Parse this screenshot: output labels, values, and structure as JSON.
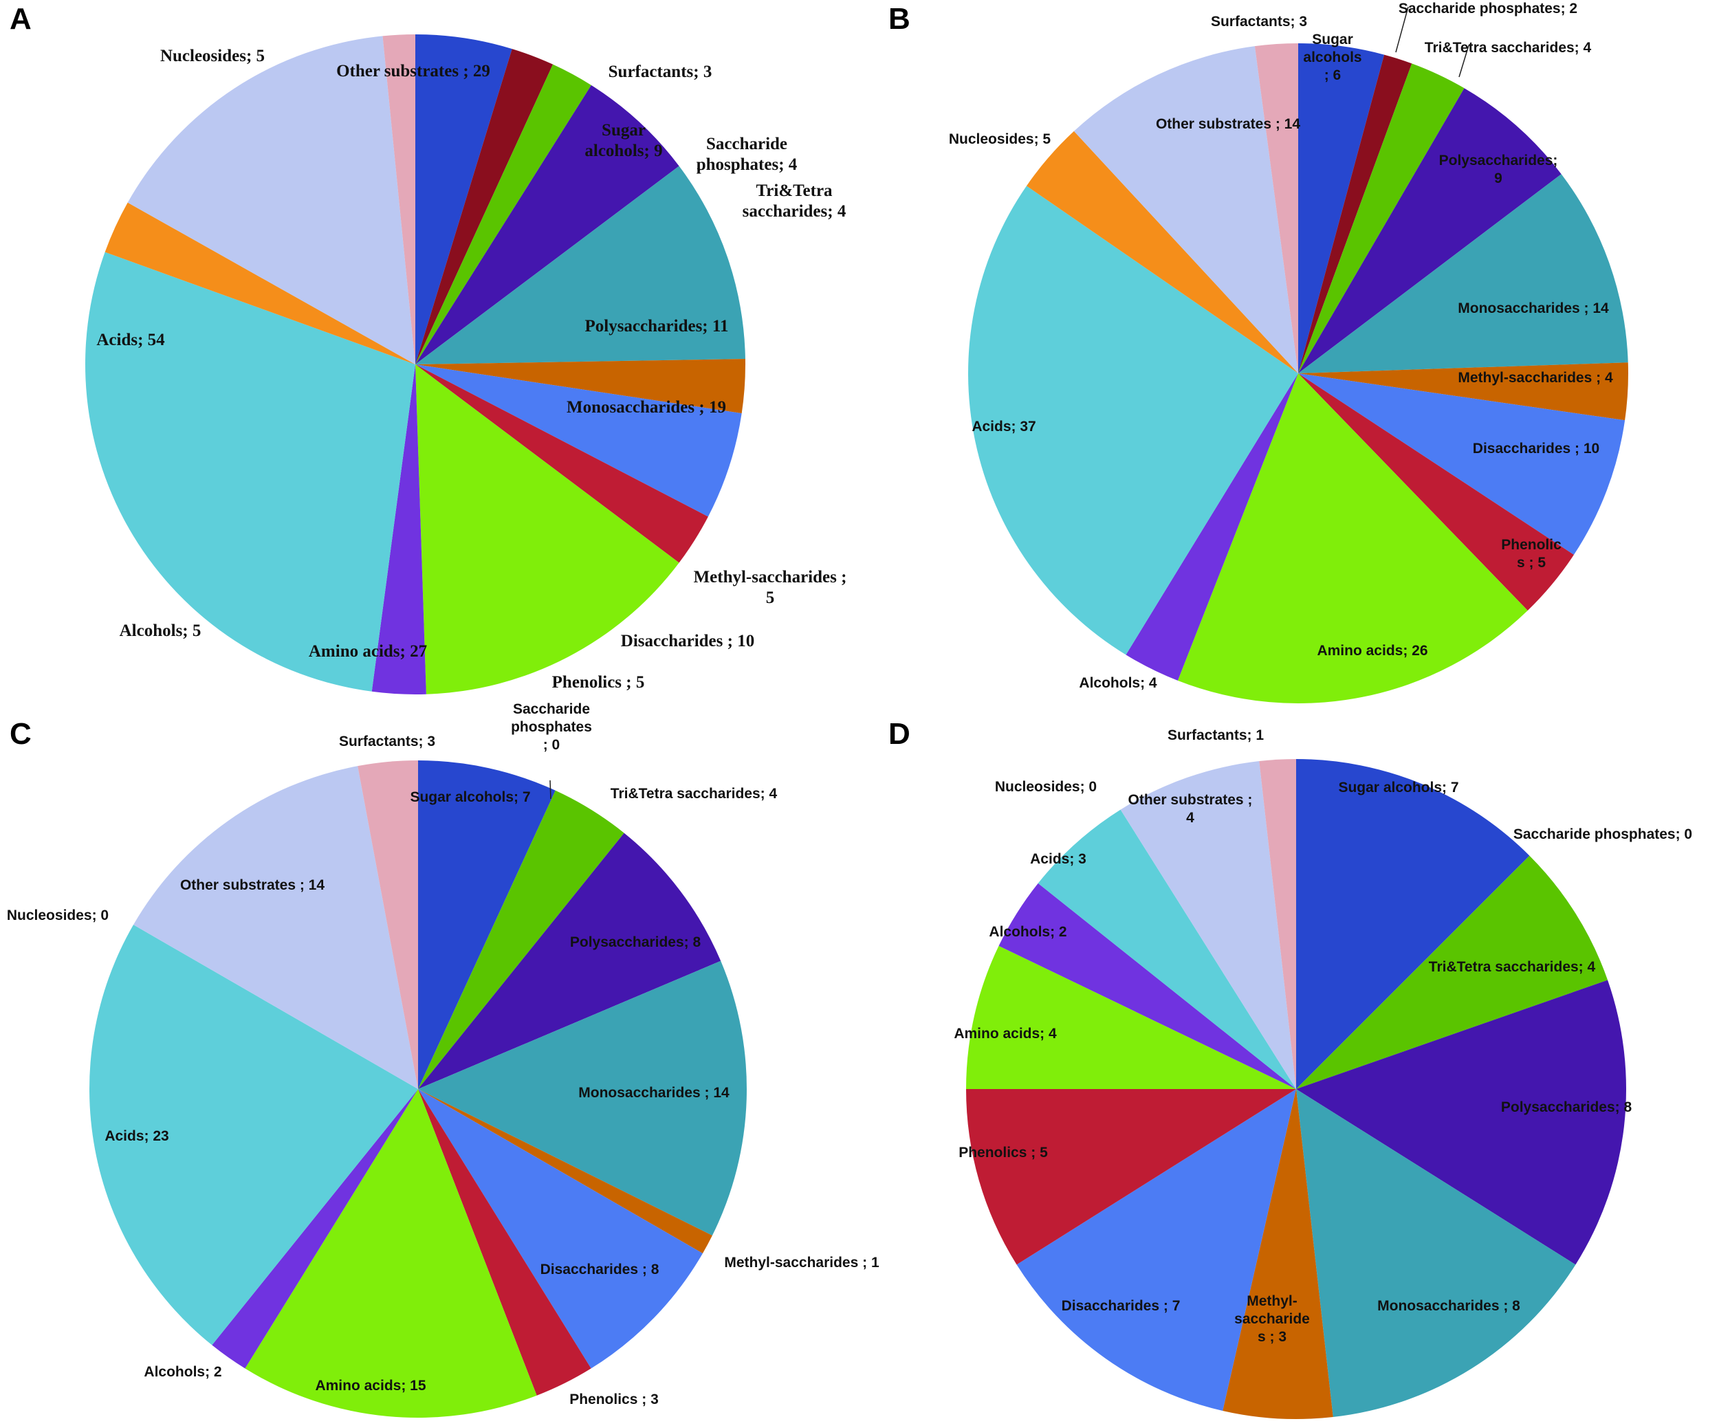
{
  "colors": {
    "Sugar alcohols": "#2747CF",
    "Saccharide phosphates": "#8A0E1E",
    "Tri&Tetra saccharides": "#5AC400",
    "Polysaccharides": "#4416AE",
    "Monosaccharides": "#3BA3B4",
    "Methyl-saccharides": "#C86400",
    "Disaccharides": "#4C7CF4",
    "Phenolics": "#BF1C34",
    "Amino acids": "#80EE0A",
    "Alcohols": "#7033E0",
    "Acids": "#5ECFDA",
    "Nucleosides": "#F58E1A",
    "Other substrates": "#BBC8F2",
    "Surfactants": "#E4A8B8"
  },
  "chart_data": [
    {
      "type": "pie",
      "panel": "A",
      "label_font": "serif",
      "categories": [
        "Sugar alcohols",
        "Saccharide phosphates",
        "Tri&Tetra saccharides",
        "Polysaccharides",
        "Monosaccharides",
        "Methyl-saccharides",
        "Disaccharides",
        "Phenolics",
        "Amino acids",
        "Alcohols",
        "Acids",
        "Nucleosides",
        "Other substrates",
        "Surfactants"
      ],
      "values": [
        9,
        4,
        4,
        11,
        19,
        5,
        10,
        5,
        27,
        5,
        54,
        5,
        29,
        3
      ],
      "labels": [
        [
          "Sugar",
          "alcohols; 9"
        ],
        [
          "Saccharide",
          "phosphates; 4"
        ],
        [
          "Tri&Tetra",
          "saccharides;  4"
        ],
        [
          "Polysaccharides;  11"
        ],
        [
          "Monosaccharides ; 19"
        ],
        [
          "Methyl-saccharides ;",
          "5"
        ],
        [
          "Disaccharides  ; 10"
        ],
        [
          "Phenolics  ; 5"
        ],
        [
          "Amino acids; 27"
        ],
        [
          "Alcohols; 5"
        ],
        [
          "Acids; 54"
        ],
        [
          "Nucleosides; 5"
        ],
        [
          "Other substrates ; 29"
        ],
        [
          "Surfactants; 3"
        ]
      ]
    },
    {
      "type": "pie",
      "panel": "B",
      "label_font": "sans",
      "categories": [
        "Sugar alcohols",
        "Saccharide phosphates",
        "Tri&Tetra saccharides",
        "Polysaccharides",
        "Monosaccharides",
        "Methyl-saccharides",
        "Disaccharides",
        "Phenolics",
        "Amino acids",
        "Alcohols",
        "Acids",
        "Nucleosides",
        "Other substrates",
        "Surfactants"
      ],
      "values": [
        6,
        2,
        4,
        9,
        14,
        4,
        10,
        5,
        26,
        4,
        37,
        5,
        14,
        3
      ],
      "labels": [
        [
          "Sugar",
          "alcohols",
          "; 6"
        ],
        [
          "Saccharide phosphates; 2"
        ],
        [
          "Tri&Tetra saccharides; 4"
        ],
        [
          "Polysaccharides;",
          "9"
        ],
        [
          "Monosaccharides ; 14"
        ],
        [
          "Methyl-saccharides ; 4"
        ],
        [
          "Disaccharides ; 10"
        ],
        [
          "Phenolic",
          "s ; 5"
        ],
        [
          "Amino acids; 26"
        ],
        [
          "Alcohols; 4"
        ],
        [
          "Acids; 37"
        ],
        [
          "Nucleosides; 5"
        ],
        [
          "Other substrates ; 14"
        ],
        [
          "Surfactants; 3"
        ]
      ]
    },
    {
      "type": "pie",
      "panel": "C",
      "label_font": "sans",
      "categories": [
        "Sugar alcohols",
        "Saccharide phosphates",
        "Tri&Tetra saccharides",
        "Polysaccharides",
        "Monosaccharides",
        "Methyl-saccharides",
        "Disaccharides",
        "Phenolics",
        "Amino acids",
        "Alcohols",
        "Acids",
        "Nucleosides",
        "Other substrates",
        "Surfactants"
      ],
      "values": [
        7,
        0,
        4,
        8,
        14,
        1,
        8,
        3,
        15,
        2,
        23,
        0,
        14,
        3
      ],
      "labels": [
        [
          "Sugar alcohols; 7"
        ],
        [
          "Saccharide",
          "phosphates",
          "; 0"
        ],
        [
          "Tri&Tetra saccharides; 4"
        ],
        [
          "Polysaccharides; 8"
        ],
        [
          "Monosaccharides ; 14"
        ],
        [
          "Methyl-saccharides ; 1"
        ],
        [
          "Disaccharides ; 8"
        ],
        [
          "Phenolics ; 3"
        ],
        [
          "Amino acids; 15"
        ],
        [
          "Alcohols; 2"
        ],
        [
          "Acids; 23"
        ],
        [
          "Nucleosides; 0"
        ],
        [
          "Other substrates ; 14"
        ],
        [
          "Surfactants; 3"
        ]
      ]
    },
    {
      "type": "pie",
      "panel": "D",
      "label_font": "sans",
      "categories": [
        "Sugar alcohols",
        "Saccharide phosphates",
        "Tri&Tetra saccharides",
        "Polysaccharides",
        "Monosaccharides",
        "Methyl-saccharides",
        "Disaccharides",
        "Phenolics",
        "Amino acids",
        "Alcohols",
        "Acids",
        "Nucleosides",
        "Other substrates",
        "Surfactants"
      ],
      "values": [
        7,
        0,
        4,
        8,
        8,
        3,
        7,
        5,
        4,
        2,
        3,
        0,
        4,
        1
      ],
      "labels": [
        [
          "Sugar alcohols; 7"
        ],
        [
          "Saccharide phosphates; 0"
        ],
        [
          "Tri&Tetra saccharides; 4"
        ],
        [
          "Polysaccharides; 8"
        ],
        [
          "Monosaccharides ; 8"
        ],
        [
          "Methyl-",
          "saccharide",
          "s ; 3"
        ],
        [
          "Disaccharides ; 7"
        ],
        [
          "Phenolics ; 5"
        ],
        [
          "Amino acids; 4"
        ],
        [
          "Alcohols; 2"
        ],
        [
          "Acids; 3"
        ],
        [
          "Nucleosides; 0"
        ],
        [
          "Other substrates ;",
          "4"
        ],
        [
          "Surfactants; 1"
        ]
      ]
    }
  ]
}
